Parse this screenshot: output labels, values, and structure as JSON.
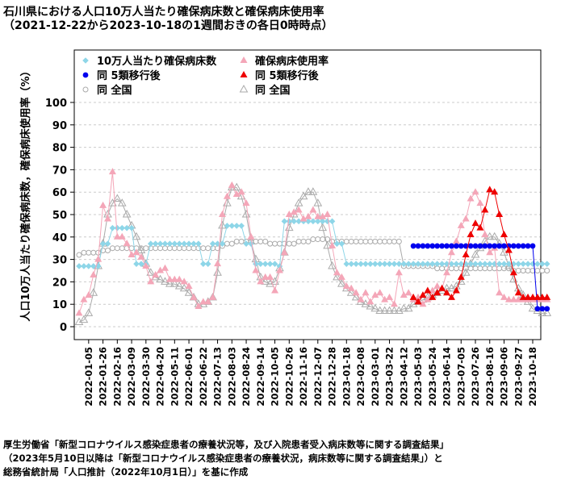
{
  "title": "石川県における人口10万人当たり確保病床数と確保病床使用率",
  "subtitle": "（2021-12-22から2023-10-18の1週間おきの各日0時時点）",
  "source_lines": [
    "厚生労働省「新型コロナウイルス感染症患者の療養状況等，及び入院患者受入病床数等に関する調査結果」",
    "（2023年5月10日以降は「新型コロナウイルス感染症患者の療養状況，病床数等に関する調査結果」）と",
    "総務省統計局「人口推計（2022年10月1日）」を基に作成"
  ],
  "colors": {
    "beds": "#8ed6e8",
    "usage": "#f4a6b8",
    "beds_post": "#0000ee",
    "usage_post": "#ee0000",
    "national": "#aaaaaa",
    "grid": "#cccccc"
  },
  "chart_data": {
    "type": "line",
    "ylabel": "人口10万人当たり確保病床数，確保病床使用率（%）",
    "yticks": [
      0,
      10,
      20,
      30,
      40,
      50,
      60,
      70,
      80,
      90,
      100
    ],
    "ylim": [
      0,
      100
    ],
    "x_start": "2021-12-22",
    "x_end": "2023-10-18",
    "x_interval": "1 week",
    "xtick_labels": [
      "2022-01-05",
      "2022-01-26",
      "2022-02-16",
      "2022-03-09",
      "2022-03-30",
      "2022-04-20",
      "2022-05-11",
      "2022-06-01",
      "2022-06-22",
      "2022-07-13",
      "2022-08-03",
      "2022-08-24",
      "2022-09-14",
      "2022-10-05",
      "2022-10-26",
      "2022-11-16",
      "2022-12-07",
      "2022-12-28",
      "2023-01-18",
      "2023-02-08",
      "2023-03-01",
      "2023-03-22",
      "2023-04-12",
      "2023-05-03",
      "2023-05-24",
      "2023-06-14",
      "2023-07-05",
      "2023-07-26",
      "2023-08-16",
      "2023-09-06",
      "2023-09-27",
      "2023-10-18"
    ],
    "legend_placement": "top-left",
    "legend": {
      "beds": "10万人当たり確保病床数",
      "beds_post": "同 5類移行後",
      "beds_national": "同 全国",
      "usage": "確保病床使用率",
      "usage_post": "同 5類移行後",
      "usage_national": "同 全国"
    },
    "series": [
      {
        "name": "10万人当たり確保病床数",
        "values": [
          27,
          27,
          27,
          27,
          27,
          37,
          37,
          44,
          44,
          44,
          44,
          44,
          28,
          28,
          28,
          37,
          37,
          37,
          37,
          37,
          37,
          37,
          37,
          37,
          37,
          37,
          28,
          28,
          37,
          37,
          37,
          45,
          45,
          45,
          45,
          37,
          37,
          28,
          28,
          28,
          28,
          28,
          27,
          47,
          47,
          47,
          47,
          47,
          47,
          47,
          47,
          47,
          47,
          47,
          37,
          37,
          28,
          28,
          28,
          28,
          28,
          28,
          28,
          28,
          28,
          28,
          28,
          28,
          28,
          28,
          28,
          28,
          28,
          28,
          28,
          28,
          28,
          28,
          28,
          28,
          28,
          28,
          28,
          28,
          28,
          28,
          28,
          28,
          28,
          28,
          28,
          28,
          28,
          28,
          28,
          28,
          28,
          28,
          28
        ]
      },
      {
        "name": "確保病床使用率",
        "values": [
          6,
          12,
          14,
          23,
          30,
          54,
          48,
          69,
          40,
          40,
          37,
          32,
          33,
          31,
          27,
          20,
          23,
          25,
          26,
          21,
          21,
          21,
          20,
          18,
          13,
          9,
          11,
          11,
          13,
          28,
          50,
          58,
          63,
          59,
          60,
          55,
          40,
          25,
          20,
          22,
          22,
          16,
          25,
          33,
          50,
          51,
          52,
          48,
          49,
          52,
          49,
          49,
          50,
          36,
          24,
          22,
          18,
          17,
          15,
          12,
          15,
          11,
          14,
          15,
          12,
          13,
          10,
          24,
          14,
          15,
          12,
          13,
          10,
          12,
          16,
          18,
          17,
          24,
          33,
          38,
          45,
          48,
          57,
          60,
          55,
          41,
          33,
          35,
          15,
          13,
          12,
          12,
          12,
          12,
          12,
          12,
          12,
          12,
          12
        ]
      },
      {
        "name": "同 5類移行後",
        "values": [
          null,
          null,
          null,
          null,
          null,
          null,
          null,
          null,
          null,
          null,
          null,
          null,
          null,
          null,
          null,
          null,
          null,
          null,
          null,
          null,
          null,
          null,
          null,
          null,
          null,
          null,
          null,
          null,
          null,
          null,
          null,
          null,
          null,
          null,
          null,
          null,
          null,
          null,
          null,
          null,
          null,
          null,
          null,
          null,
          null,
          null,
          null,
          null,
          null,
          null,
          null,
          null,
          null,
          null,
          null,
          null,
          null,
          null,
          null,
          null,
          null,
          null,
          null,
          null,
          null,
          null,
          null,
          null,
          null,
          null,
          36,
          36,
          36,
          36,
          36,
          36,
          36,
          36,
          36,
          36,
          36,
          36,
          36,
          36,
          36,
          36,
          36,
          36,
          36,
          36,
          36,
          36,
          36,
          36,
          36,
          36,
          8,
          8,
          8
        ]
      },
      {
        "name": "同 5類移行後",
        "values": [
          null,
          null,
          null,
          null,
          null,
          null,
          null,
          null,
          null,
          null,
          null,
          null,
          null,
          null,
          null,
          null,
          null,
          null,
          null,
          null,
          null,
          null,
          null,
          null,
          null,
          null,
          null,
          null,
          null,
          null,
          null,
          null,
          null,
          null,
          null,
          null,
          null,
          null,
          null,
          null,
          null,
          null,
          null,
          null,
          null,
          null,
          null,
          null,
          null,
          null,
          null,
          null,
          null,
          null,
          null,
          null,
          null,
          null,
          null,
          null,
          null,
          null,
          null,
          null,
          null,
          null,
          null,
          null,
          null,
          null,
          13,
          11,
          14,
          16,
          13,
          15,
          17,
          15,
          13,
          16,
          22,
          32,
          41,
          46,
          44,
          52,
          61,
          60,
          50,
          41,
          34,
          24,
          15,
          13,
          13,
          13,
          13,
          13,
          13
        ]
      },
      {
        "name": "同 全国",
        "values": [
          32,
          33,
          33,
          33,
          33,
          34,
          34,
          35,
          35,
          35,
          35,
          35,
          35,
          35,
          35,
          35,
          35,
          35,
          35,
          35,
          35,
          35,
          35,
          35,
          35,
          35,
          35,
          35,
          35,
          35,
          36,
          37,
          37,
          38,
          38,
          38,
          38,
          38,
          38,
          38,
          37,
          37,
          37,
          37,
          37,
          37,
          38,
          38,
          38,
          39,
          39,
          39,
          39,
          38,
          38,
          38,
          38,
          38,
          38,
          38,
          38,
          38,
          38,
          38,
          38,
          38,
          38,
          38,
          27,
          27,
          27,
          27,
          27,
          27,
          27,
          26,
          26,
          26,
          26,
          26,
          26,
          26,
          26,
          26,
          26,
          26,
          26,
          26,
          26,
          26,
          26,
          25,
          25,
          25,
          25,
          25,
          25,
          25,
          25
        ]
      },
      {
        "name": "同 全国",
        "values": [
          2,
          3,
          6,
          15,
          27,
          37,
          50,
          55,
          57,
          55,
          50,
          45,
          40,
          34,
          28,
          24,
          22,
          21,
          20,
          19,
          19,
          18,
          17,
          15,
          13,
          10,
          10,
          11,
          13,
          24,
          45,
          55,
          62,
          62,
          58,
          50,
          38,
          30,
          22,
          20,
          19,
          20,
          26,
          33,
          44,
          50,
          55,
          58,
          60,
          60,
          55,
          44,
          36,
          27,
          22,
          19,
          17,
          15,
          13,
          11,
          10,
          9,
          8,
          7,
          7,
          7,
          7,
          7,
          8,
          8,
          10,
          11,
          12,
          13,
          14,
          15,
          16,
          17,
          17,
          18,
          20,
          24,
          28,
          32,
          35,
          38,
          40,
          40,
          37,
          33,
          27,
          21,
          17,
          14,
          11,
          8,
          7,
          6,
          6
        ]
      }
    ]
  }
}
